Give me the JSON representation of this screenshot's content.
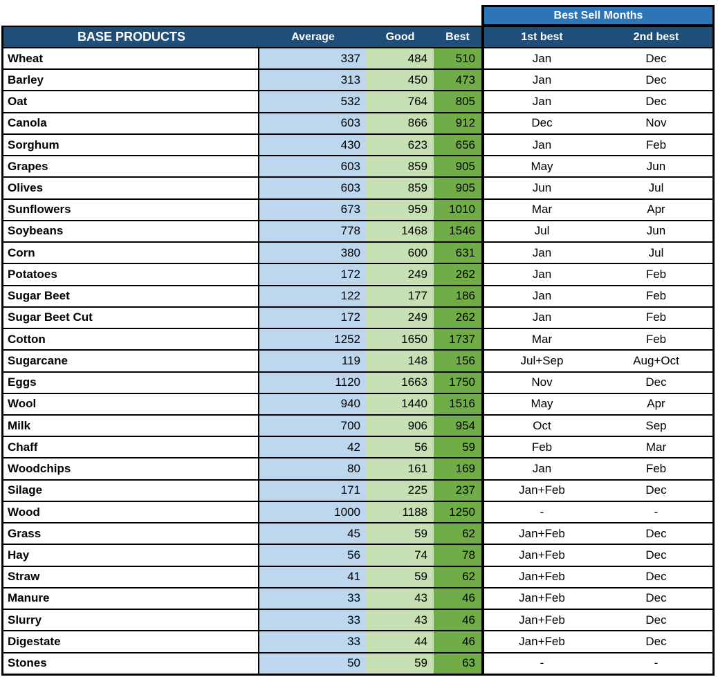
{
  "chart_data": {
    "type": "table",
    "title": "BASE PRODUCTS",
    "group_header": "Best Sell Months",
    "headers": {
      "products": "BASE PRODUCTS",
      "average": "Average",
      "good": "Good",
      "best": "Best",
      "first_best": "1st best",
      "second_best": "2nd best"
    },
    "colors": {
      "header_navy": "#1F4E79",
      "group_header_blue": "#2E75B6",
      "average_fill": "#BDD7EE",
      "good_fill": "#C6E0B4",
      "best_fill": "#70AD47",
      "border": "#000000",
      "header_text": "#FFFFFF",
      "body_text": "#000000"
    },
    "rows": [
      {
        "name": "Wheat",
        "average": 337,
        "good": 484,
        "best": 510,
        "first_best": "Jan",
        "second_best": "Dec"
      },
      {
        "name": "Barley",
        "average": 313,
        "good": 450,
        "best": 473,
        "first_best": "Jan",
        "second_best": "Dec"
      },
      {
        "name": "Oat",
        "average": 532,
        "good": 764,
        "best": 805,
        "first_best": "Jan",
        "second_best": "Dec"
      },
      {
        "name": "Canola",
        "average": 603,
        "good": 866,
        "best": 912,
        "first_best": "Dec",
        "second_best": "Nov"
      },
      {
        "name": "Sorghum",
        "average": 430,
        "good": 623,
        "best": 656,
        "first_best": "Jan",
        "second_best": "Feb"
      },
      {
        "name": "Grapes",
        "average": 603,
        "good": 859,
        "best": 905,
        "first_best": "May",
        "second_best": "Jun"
      },
      {
        "name": "Olives",
        "average": 603,
        "good": 859,
        "best": 905,
        "first_best": "Jun",
        "second_best": "Jul"
      },
      {
        "name": "Sunflowers",
        "average": 673,
        "good": 959,
        "best": 1010,
        "first_best": "Mar",
        "second_best": "Apr"
      },
      {
        "name": "Soybeans",
        "average": 778,
        "good": 1468,
        "best": 1546,
        "first_best": "Jul",
        "second_best": "Jun"
      },
      {
        "name": "Corn",
        "average": 380,
        "good": 600,
        "best": 631,
        "first_best": "Jan",
        "second_best": "Jul"
      },
      {
        "name": "Potatoes",
        "average": 172,
        "good": 249,
        "best": 262,
        "first_best": "Jan",
        "second_best": "Feb"
      },
      {
        "name": "Sugar Beet",
        "average": 122,
        "good": 177,
        "best": 186,
        "first_best": "Jan",
        "second_best": "Feb"
      },
      {
        "name": "Sugar Beet Cut",
        "average": 172,
        "good": 249,
        "best": 262,
        "first_best": "Jan",
        "second_best": "Feb"
      },
      {
        "name": "Cotton",
        "average": 1252,
        "good": 1650,
        "best": 1737,
        "first_best": "Mar",
        "second_best": "Feb"
      },
      {
        "name": "Sugarcane",
        "average": 119,
        "good": 148,
        "best": 156,
        "first_best": "Jul+Sep",
        "second_best": "Aug+Oct"
      },
      {
        "name": "Eggs",
        "average": 1120,
        "good": 1663,
        "best": 1750,
        "first_best": "Nov",
        "second_best": "Dec"
      },
      {
        "name": "Wool",
        "average": 940,
        "good": 1440,
        "best": 1516,
        "first_best": "May",
        "second_best": "Apr"
      },
      {
        "name": "Milk",
        "average": 700,
        "good": 906,
        "best": 954,
        "first_best": "Oct",
        "second_best": "Sep"
      },
      {
        "name": "Chaff",
        "average": 42,
        "good": 56,
        "best": 59,
        "first_best": "Feb",
        "second_best": "Mar"
      },
      {
        "name": "Woodchips",
        "average": 80,
        "good": 161,
        "best": 169,
        "first_best": "Jan",
        "second_best": "Feb"
      },
      {
        "name": "Silage",
        "average": 171,
        "good": 225,
        "best": 237,
        "first_best": "Jan+Feb",
        "second_best": "Dec"
      },
      {
        "name": "Wood",
        "average": 1000,
        "good": 1188,
        "best": 1250,
        "first_best": "-",
        "second_best": "-"
      },
      {
        "name": "Grass",
        "average": 45,
        "good": 59,
        "best": 62,
        "first_best": "Jan+Feb",
        "second_best": "Dec"
      },
      {
        "name": "Hay",
        "average": 56,
        "good": 74,
        "best": 78,
        "first_best": "Jan+Feb",
        "second_best": "Dec"
      },
      {
        "name": "Straw",
        "average": 41,
        "good": 59,
        "best": 62,
        "first_best": "Jan+Feb",
        "second_best": "Dec"
      },
      {
        "name": "Manure",
        "average": 33,
        "good": 43,
        "best": 46,
        "first_best": "Jan+Feb",
        "second_best": "Dec"
      },
      {
        "name": "Slurry",
        "average": 33,
        "good": 43,
        "best": 46,
        "first_best": "Jan+Feb",
        "second_best": "Dec"
      },
      {
        "name": "Digestate",
        "average": 33,
        "good": 44,
        "best": 46,
        "first_best": "Jan+Feb",
        "second_best": "Dec"
      },
      {
        "name": "Stones",
        "average": 50,
        "good": 59,
        "best": 63,
        "first_best": "-",
        "second_best": "-"
      }
    ]
  }
}
